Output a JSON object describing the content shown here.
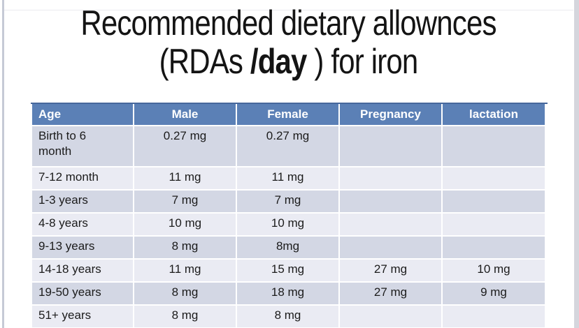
{
  "slide": {
    "title_line1": "Recommended dietary allownces",
    "title_line2_prefix": "(RDAs ",
    "title_line2_bold": "/day",
    "title_line2_suffix": " ) for iron"
  },
  "table": {
    "headers": [
      "Age",
      "Male",
      "Female",
      "Pregnancy",
      "lactation"
    ],
    "rows": [
      {
        "age": "Birth to 6 month",
        "male": "0.27 mg",
        "female": "0.27 mg",
        "pregnancy": "",
        "lactation": ""
      },
      {
        "age": "7-12 month",
        "male": "11 mg",
        "female": "11 mg",
        "pregnancy": "",
        "lactation": ""
      },
      {
        "age": "1-3 years",
        "male": "7 mg",
        "female": "7 mg",
        "pregnancy": "",
        "lactation": ""
      },
      {
        "age": "4-8 years",
        "male": "10 mg",
        "female": "10 mg",
        "pregnancy": "",
        "lactation": ""
      },
      {
        "age": "9-13 years",
        "male": "8 mg",
        "female": "8mg",
        "pregnancy": "",
        "lactation": ""
      },
      {
        "age": "14-18 years",
        "male": "11 mg",
        "female": "15 mg",
        "pregnancy": "27 mg",
        "lactation": "10 mg"
      },
      {
        "age": "19-50 years",
        "male": "8 mg",
        "female": "18 mg",
        "pregnancy": "27 mg",
        "lactation": "9 mg"
      },
      {
        "age": "51+ years",
        "male": "8 mg",
        "female": "8 mg",
        "pregnancy": "",
        "lactation": ""
      }
    ]
  },
  "colors": {
    "header_bg": "#5b80b6",
    "header_text": "#ffffff",
    "band_dark": "#d3d7e4",
    "band_light": "#eaebf3",
    "table_top_border": "#46679c",
    "body_text": "#1b1b1b"
  }
}
